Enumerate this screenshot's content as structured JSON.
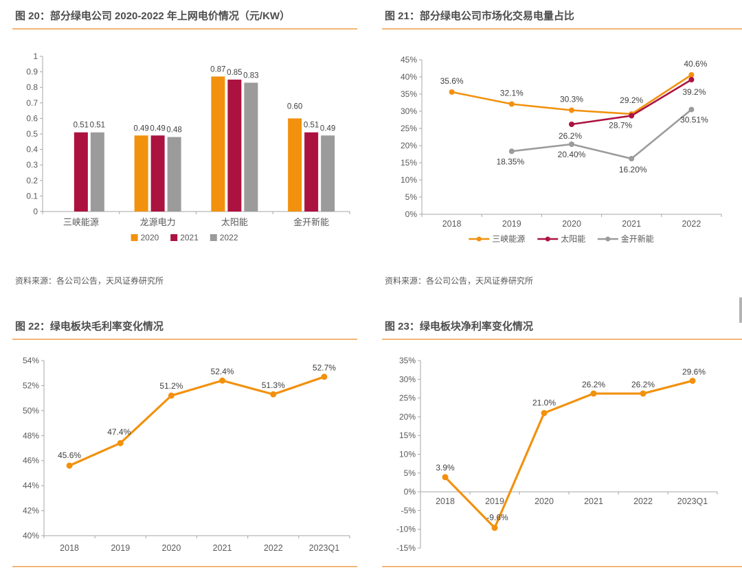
{
  "colors": {
    "orange": "#F2910D",
    "crimson": "#AC1240",
    "gray": "#9B9B9B",
    "underline": "#F3B575",
    "axis": "#A6A6A6",
    "title_text": "#4D4D4D",
    "tick_text": "#595959",
    "data_label_text": "#404040"
  },
  "source_note": "资料来源：各公司公告，天风证券研究所",
  "figures": [
    {
      "label": "图 20：",
      "title": "部分绿电公司 2020-2022 年上网电价情况（元/KW）"
    },
    {
      "label": "图 21：",
      "title": "部分绿电公司市场化交易电量占比"
    },
    {
      "label": "图 22：",
      "title": "绿电板块毛利率变化情况"
    },
    {
      "label": "图 23：",
      "title": "绿电板块净利率变化情况"
    }
  ],
  "chart_data": [
    {
      "id": "fig20",
      "type": "bar",
      "title": "图 20：部分绿电公司 2020-2022 年上网电价情况（元/KW）",
      "categories": [
        "三峡能源",
        "龙源电力",
        "太阳能",
        "金开新能"
      ],
      "series": [
        {
          "name": "2020",
          "color": "#F2910D",
          "values": [
            null,
            0.49,
            0.87,
            0.6
          ],
          "labels": [
            "",
            "0.49",
            "0.87",
            "0.60"
          ],
          "label_dy": [
            -7,
            -7,
            -7,
            -14
          ]
        },
        {
          "name": "2021",
          "color": "#AC1240",
          "values": [
            0.51,
            0.49,
            0.85,
            0.51
          ],
          "labels": [
            "0.51",
            "0.49",
            "0.85",
            "0.51"
          ],
          "label_dy": [
            -7,
            -7,
            -7,
            -7
          ]
        },
        {
          "name": "2022",
          "color": "#9B9B9B",
          "values": [
            0.51,
            0.48,
            0.83,
            0.49
          ],
          "labels": [
            "0.51",
            "0.48",
            "0.83",
            "0.49"
          ],
          "label_dy": [
            -7,
            -7,
            -7,
            -7
          ]
        }
      ],
      "ylim": [
        0,
        1
      ],
      "ytick_step": 0.1,
      "ytick_labels": [
        "1",
        "0.9",
        "0.8",
        "0.7",
        "0.6",
        "0.5",
        "0.4",
        "0.3",
        "0.2",
        "0.1",
        "0"
      ],
      "grid": false,
      "legend": true,
      "legend_position": "bottom",
      "source": "资料来源：各公司公告，天风证券研究所"
    },
    {
      "id": "fig21",
      "type": "line",
      "title": "图 21：部分绿电公司市场化交易电量占比",
      "x": [
        "2018",
        "2019",
        "2020",
        "2021",
        "2022"
      ],
      "series": [
        {
          "name": "三峡能源",
          "color": "#F2910D",
          "values": [
            35.6,
            32.1,
            30.3,
            29.2,
            40.6
          ],
          "labels": [
            "35.6%",
            "32.1%",
            "30.3%",
            "29.2%",
            "40.6%"
          ],
          "label_dx": [
            0,
            0,
            0,
            0,
            6
          ],
          "label_dy": [
            -12,
            -12,
            -12,
            -16,
            -12
          ]
        },
        {
          "name": "太阳能",
          "color": "#AC1240",
          "values": [
            null,
            null,
            26.2,
            28.7,
            39.2
          ],
          "labels": [
            "",
            "",
            "26.2%",
            "28.7%",
            "39.2%"
          ],
          "label_dx": [
            0,
            0,
            -2,
            -16,
            4
          ],
          "label_dy": [
            0,
            0,
            21,
            18,
            22
          ]
        },
        {
          "name": "金开新能",
          "color": "#9B9B9B",
          "values": [
            null,
            18.35,
            20.4,
            16.2,
            30.51
          ],
          "labels": [
            "",
            "18.35%",
            "20.40%",
            "16.20%",
            "30.51%"
          ],
          "label_dx": [
            0,
            -2,
            0,
            2,
            4
          ],
          "label_dy": [
            0,
            19,
            19,
            20,
            19
          ]
        }
      ],
      "ylim": [
        0,
        45
      ],
      "ytick_step": 5,
      "ytick_labels": [
        "45%",
        "40%",
        "35%",
        "30%",
        "25%",
        "20%",
        "15%",
        "10%",
        "5%",
        "0%"
      ],
      "grid": false,
      "legend": true,
      "legend_position": "bottom",
      "source": "资料来源：各公司公告，天风证券研究所"
    },
    {
      "id": "fig22",
      "type": "line",
      "title": "图 22：绿电板块毛利率变化情况",
      "x": [
        "2018",
        "2019",
        "2020",
        "2021",
        "2022",
        "2023Q1"
      ],
      "series": [
        {
          "name": "毛利率",
          "color": "#F2910D",
          "values": [
            45.6,
            47.4,
            51.2,
            52.4,
            51.3,
            52.7
          ],
          "labels": [
            "45.6%",
            "47.4%",
            "51.2%",
            "52.4%",
            "51.3%",
            "52.7%"
          ],
          "label_dx": [
            0,
            -2,
            0,
            0,
            0,
            0
          ],
          "label_dy": [
            -11,
            -12,
            -10,
            -9,
            -9,
            -9
          ]
        }
      ],
      "ylim": [
        40,
        54
      ],
      "ytick_step": 2,
      "ytick_labels": [
        "54%",
        "52%",
        "50%",
        "48%",
        "46%",
        "44%",
        "42%",
        "40%"
      ],
      "grid": false,
      "legend": false
    },
    {
      "id": "fig23",
      "type": "line",
      "title": "图 23：绿电板块净利率变化情况",
      "x": [
        "2018",
        "2019",
        "2020",
        "2021",
        "2022",
        "2023Q1"
      ],
      "x_axis_at": "zero",
      "series": [
        {
          "name": "净利率",
          "color": "#F2910D",
          "values": [
            3.9,
            -9.6,
            21.0,
            26.2,
            26.2,
            29.6
          ],
          "labels": [
            "3.9%",
            "-9.6%",
            "21.0%",
            "26.2%",
            "26.2%",
            "29.6%"
          ],
          "label_dx": [
            0,
            4,
            0,
            0,
            0,
            2
          ],
          "label_dy": [
            -10,
            -11,
            -11,
            -9,
            -9,
            -9
          ]
        }
      ],
      "ylim": [
        -15,
        35
      ],
      "ytick_step": 5,
      "ytick_labels": [
        "35%",
        "30%",
        "25%",
        "20%",
        "15%",
        "10%",
        "5%",
        "0%",
        "-5%",
        "-10%",
        "-15%"
      ],
      "grid": false,
      "legend": false
    }
  ]
}
